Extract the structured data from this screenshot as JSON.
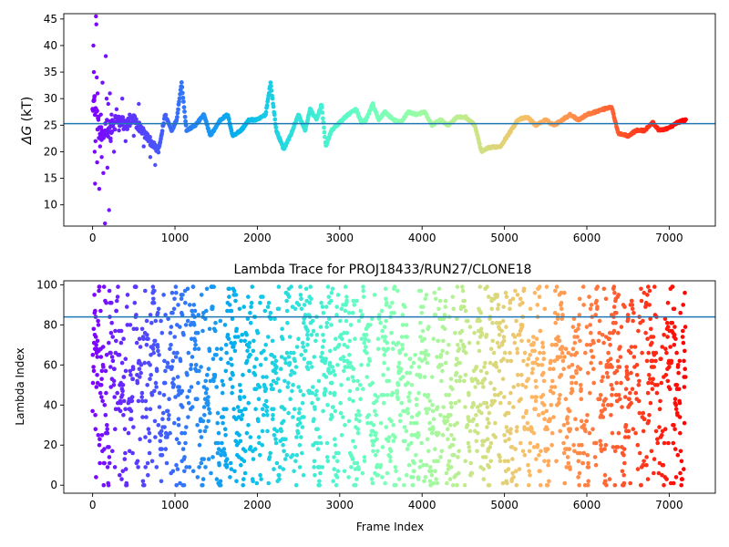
{
  "chart_data": [
    {
      "type": "scatter",
      "title": "",
      "xlabel": "",
      "ylabel": "ΔG (kT)",
      "ylabel_symbol": "ΔG",
      "ylabel_unit": "(kT)",
      "xlim": [
        -350,
        7560
      ],
      "ylim": [
        6,
        46
      ],
      "xticks": [
        0,
        1000,
        2000,
        3000,
        4000,
        5000,
        6000,
        7000
      ],
      "yticks": [
        10,
        15,
        20,
        25,
        30,
        35,
        40,
        45
      ],
      "reference_line": 25.3,
      "reference_line_color": "#1f77b4",
      "colormap": "rainbow (red → violet by frame index)",
      "x_range": [
        0,
        7200
      ],
      "trace_keypoints": [
        [
          0,
          30
        ],
        [
          40,
          28
        ],
        [
          80,
          24
        ],
        [
          120,
          22
        ],
        [
          160,
          25
        ],
        [
          220,
          24
        ],
        [
          300,
          26
        ],
        [
          400,
          25
        ],
        [
          500,
          26
        ],
        [
          600,
          24
        ],
        [
          700,
          22
        ],
        [
          800,
          20
        ],
        [
          880,
          27
        ],
        [
          960,
          24
        ],
        [
          1020,
          26
        ],
        [
          1080,
          33
        ],
        [
          1140,
          24
        ],
        [
          1250,
          25
        ],
        [
          1350,
          27
        ],
        [
          1430,
          23
        ],
        [
          1550,
          26
        ],
        [
          1640,
          27
        ],
        [
          1700,
          23
        ],
        [
          1800,
          24
        ],
        [
          1900,
          26
        ],
        [
          2000,
          26
        ],
        [
          2100,
          27
        ],
        [
          2160,
          33
        ],
        [
          2230,
          24
        ],
        [
          2320,
          20.5
        ],
        [
          2400,
          23
        ],
        [
          2500,
          27
        ],
        [
          2580,
          24
        ],
        [
          2640,
          28
        ],
        [
          2720,
          26
        ],
        [
          2780,
          29
        ],
        [
          2830,
          21
        ],
        [
          2900,
          24
        ],
        [
          3000,
          25.5
        ],
        [
          3100,
          27
        ],
        [
          3200,
          28
        ],
        [
          3260,
          25.5
        ],
        [
          3320,
          26
        ],
        [
          3400,
          29
        ],
        [
          3470,
          26
        ],
        [
          3550,
          27.5
        ],
        [
          3650,
          26
        ],
        [
          3740,
          25.5
        ],
        [
          3830,
          27.5
        ],
        [
          3930,
          27
        ],
        [
          4030,
          27.5
        ],
        [
          4120,
          25
        ],
        [
          4220,
          26
        ],
        [
          4320,
          25
        ],
        [
          4420,
          26.5
        ],
        [
          4530,
          26.5
        ],
        [
          4640,
          25
        ],
        [
          4720,
          20
        ],
        [
          4820,
          20.8
        ],
        [
          4950,
          21
        ],
        [
          5080,
          24
        ],
        [
          5160,
          26
        ],
        [
          5280,
          26.5
        ],
        [
          5380,
          25
        ],
        [
          5500,
          26
        ],
        [
          5600,
          25
        ],
        [
          5700,
          26
        ],
        [
          5800,
          27
        ],
        [
          5900,
          26
        ],
        [
          6000,
          27
        ],
        [
          6100,
          27.5
        ],
        [
          6200,
          28
        ],
        [
          6300,
          28.5
        ],
        [
          6380,
          23.5
        ],
        [
          6500,
          23
        ],
        [
          6600,
          24
        ],
        [
          6700,
          24
        ],
        [
          6800,
          25.5
        ],
        [
          6880,
          24
        ],
        [
          7000,
          24.5
        ],
        [
          7100,
          25.5
        ],
        [
          7200,
          26
        ]
      ],
      "early_scatter_points": [
        [
          10,
          40
        ],
        [
          15,
          35
        ],
        [
          20,
          30
        ],
        [
          25,
          20
        ],
        [
          30,
          14
        ],
        [
          35,
          22
        ],
        [
          40,
          45.5
        ],
        [
          45,
          44
        ],
        [
          50,
          34
        ],
        [
          55,
          18
        ],
        [
          60,
          31
        ],
        [
          70,
          26
        ],
        [
          80,
          13
        ],
        [
          90,
          21
        ],
        [
          100,
          27
        ],
        [
          110,
          19
        ],
        [
          120,
          33
        ],
        [
          130,
          16
        ],
        [
          140,
          23
        ],
        [
          150,
          6.5
        ],
        [
          160,
          38
        ],
        [
          170,
          30
        ],
        [
          180,
          17
        ],
        [
          190,
          29
        ],
        [
          200,
          9
        ],
        [
          210,
          31
        ],
        [
          220,
          22
        ],
        [
          230,
          27
        ],
        [
          260,
          20
        ],
        [
          290,
          28
        ],
        [
          320,
          24
        ],
        [
          360,
          30
        ],
        [
          400,
          22
        ],
        [
          450,
          27
        ],
        [
          500,
          23
        ],
        [
          560,
          29
        ],
        [
          620,
          21
        ],
        [
          700,
          19
        ],
        [
          760,
          17.5
        ]
      ]
    },
    {
      "type": "scatter",
      "title": "Lambda Trace for PROJ18433/RUN27/CLONE18",
      "xlabel": "Frame Index",
      "ylabel": "Lambda Index",
      "xlim": [
        -350,
        7560
      ],
      "ylim": [
        -4,
        102
      ],
      "xticks": [
        0,
        1000,
        2000,
        3000,
        4000,
        5000,
        6000,
        7000
      ],
      "yticks": [
        0,
        20,
        40,
        60,
        80,
        100
      ],
      "reference_line": 84,
      "reference_line_color": "#1f77b4",
      "colormap": "rainbow (red → violet by frame index)",
      "x_range": [
        0,
        7200
      ],
      "lambda_range": [
        0,
        99
      ]
    }
  ]
}
